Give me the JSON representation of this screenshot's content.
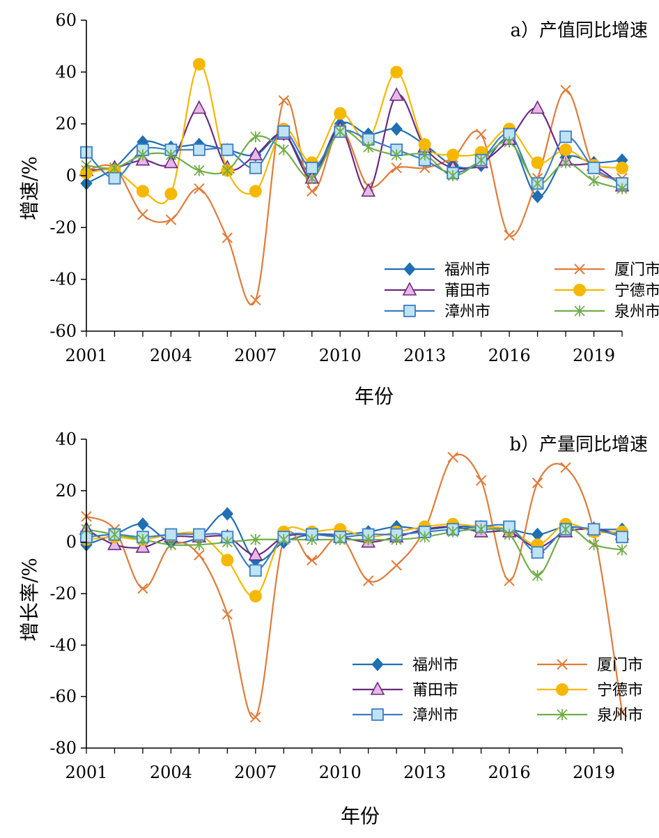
{
  "chart_data": [
    {
      "type": "line",
      "title": "a）产值同比增速",
      "xlabel": "年份",
      "ylabel": "增速/%",
      "ylim": [
        -60,
        60
      ],
      "yticks": [
        "60",
        "40",
        "20",
        "0",
        "-20",
        "-40",
        "-60"
      ],
      "xlim": [
        2001,
        2020
      ],
      "xticks": [
        "2001",
        "2004",
        "2007",
        "2010",
        "2013",
        "2016",
        "2019"
      ],
      "x": [
        2001,
        2002,
        2003,
        2004,
        2005,
        2006,
        2007,
        2008,
        2009,
        2010,
        2011,
        2012,
        2013,
        2014,
        2015,
        2016,
        2017,
        2018,
        2019,
        2020
      ],
      "legend_position": "lower-right",
      "series": [
        {
          "name": "福州市",
          "color": "#1f6fb2",
          "marker": "diamond",
          "values": [
            -3,
            3,
            13,
            11,
            12,
            10,
            8,
            16,
            1,
            20,
            16,
            18,
            12,
            4,
            4,
            14,
            -8,
            7,
            5,
            6
          ]
        },
        {
          "name": "厦门市",
          "color": "#e07b39",
          "marker": "x",
          "values": [
            2,
            3,
            -15,
            -17,
            -5,
            -24,
            -48,
            29,
            -6,
            18,
            -4,
            3,
            3,
            7,
            16,
            -23,
            -1,
            33,
            3,
            -1
          ]
        },
        {
          "name": "莆田市",
          "color": "#6b2a7f",
          "marker": "triangle",
          "values": [
            2,
            3,
            6,
            5,
            26,
            3,
            8,
            16,
            -1,
            18,
            -6,
            31,
            11,
            3,
            5,
            14,
            26,
            6,
            4,
            -4
          ]
        },
        {
          "name": "宁德市",
          "color": "#f5b800",
          "marker": "circle",
          "values": [
            1,
            2,
            -6,
            -7,
            43,
            2,
            -6,
            18,
            5,
            24,
            14,
            40,
            12,
            8,
            9,
            18,
            5,
            10,
            4,
            3
          ]
        },
        {
          "name": "漳州市",
          "color": "#3b7dc4",
          "marker": "square",
          "values": [
            9,
            -1,
            10,
            10,
            10,
            10,
            3,
            17,
            3,
            17,
            14,
            10,
            6,
            1,
            6,
            16,
            -3,
            15,
            3,
            -3
          ]
        },
        {
          "name": "泉州市",
          "color": "#70ad47",
          "marker": "asterisk",
          "values": [
            4,
            3,
            8,
            8,
            2,
            2,
            15,
            10,
            -1,
            17,
            11,
            8,
            8,
            0,
            6,
            13,
            -3,
            5,
            -2,
            -5
          ]
        }
      ]
    },
    {
      "type": "line",
      "title": "b）产量同比增速",
      "xlabel": "年份",
      "ylabel": "增长率/%",
      "ylim": [
        -80,
        40
      ],
      "yticks": [
        "40",
        "20",
        "0",
        "-20",
        "-40",
        "-60",
        "-80"
      ],
      "xlim": [
        2001,
        2020
      ],
      "xticks": [
        "2001",
        "2004",
        "2007",
        "2010",
        "2013",
        "2016",
        "2019"
      ],
      "x": [
        2001,
        2002,
        2003,
        2004,
        2005,
        2006,
        2007,
        2008,
        2009,
        2010,
        2011,
        2012,
        2013,
        2014,
        2015,
        2016,
        2017,
        2018,
        2019,
        2020
      ],
      "legend_position": "lower-right",
      "series": [
        {
          "name": "福州市",
          "color": "#1f6fb2",
          "marker": "diamond",
          "values": [
            -1,
            3,
            7,
            0,
            2,
            11,
            -7,
            0,
            3,
            3,
            4,
            6,
            5,
            6,
            6,
            5,
            3,
            6,
            5,
            5
          ]
        },
        {
          "name": "厦门市",
          "color": "#e07b39",
          "marker": "x",
          "values": [
            10,
            5,
            -18,
            -1,
            -5,
            -28,
            -68,
            1,
            -7,
            2,
            -15,
            -9,
            5,
            33,
            24,
            -15,
            23,
            29,
            4,
            -66
          ]
        },
        {
          "name": "莆田市",
          "color": "#6b2a7f",
          "marker": "triangle",
          "values": [
            5,
            -1,
            -2,
            2,
            2,
            2,
            -5,
            2,
            3,
            2,
            0,
            2,
            5,
            6,
            4,
            4,
            -2,
            4,
            5,
            3
          ]
        },
        {
          "name": "宁德市",
          "color": "#f5b800",
          "marker": "circle",
          "values": [
            1,
            2,
            1,
            3,
            3,
            -7,
            -21,
            4,
            4,
            5,
            2,
            4,
            6,
            7,
            6,
            5,
            -1,
            7,
            4,
            4
          ]
        },
        {
          "name": "漳州市",
          "color": "#3b7dc4",
          "marker": "square",
          "values": [
            2,
            3,
            2,
            3,
            3,
            2,
            -11,
            2,
            3,
            2,
            3,
            3,
            4,
            5,
            6,
            6,
            -4,
            5,
            5,
            2
          ]
        },
        {
          "name": "泉州市",
          "color": "#70ad47",
          "marker": "asterisk",
          "values": [
            5,
            3,
            1,
            -1,
            -1,
            0,
            1,
            1,
            1,
            1,
            1,
            1,
            2,
            4,
            5,
            3,
            -13,
            5,
            -1,
            -3
          ]
        }
      ]
    }
  ]
}
